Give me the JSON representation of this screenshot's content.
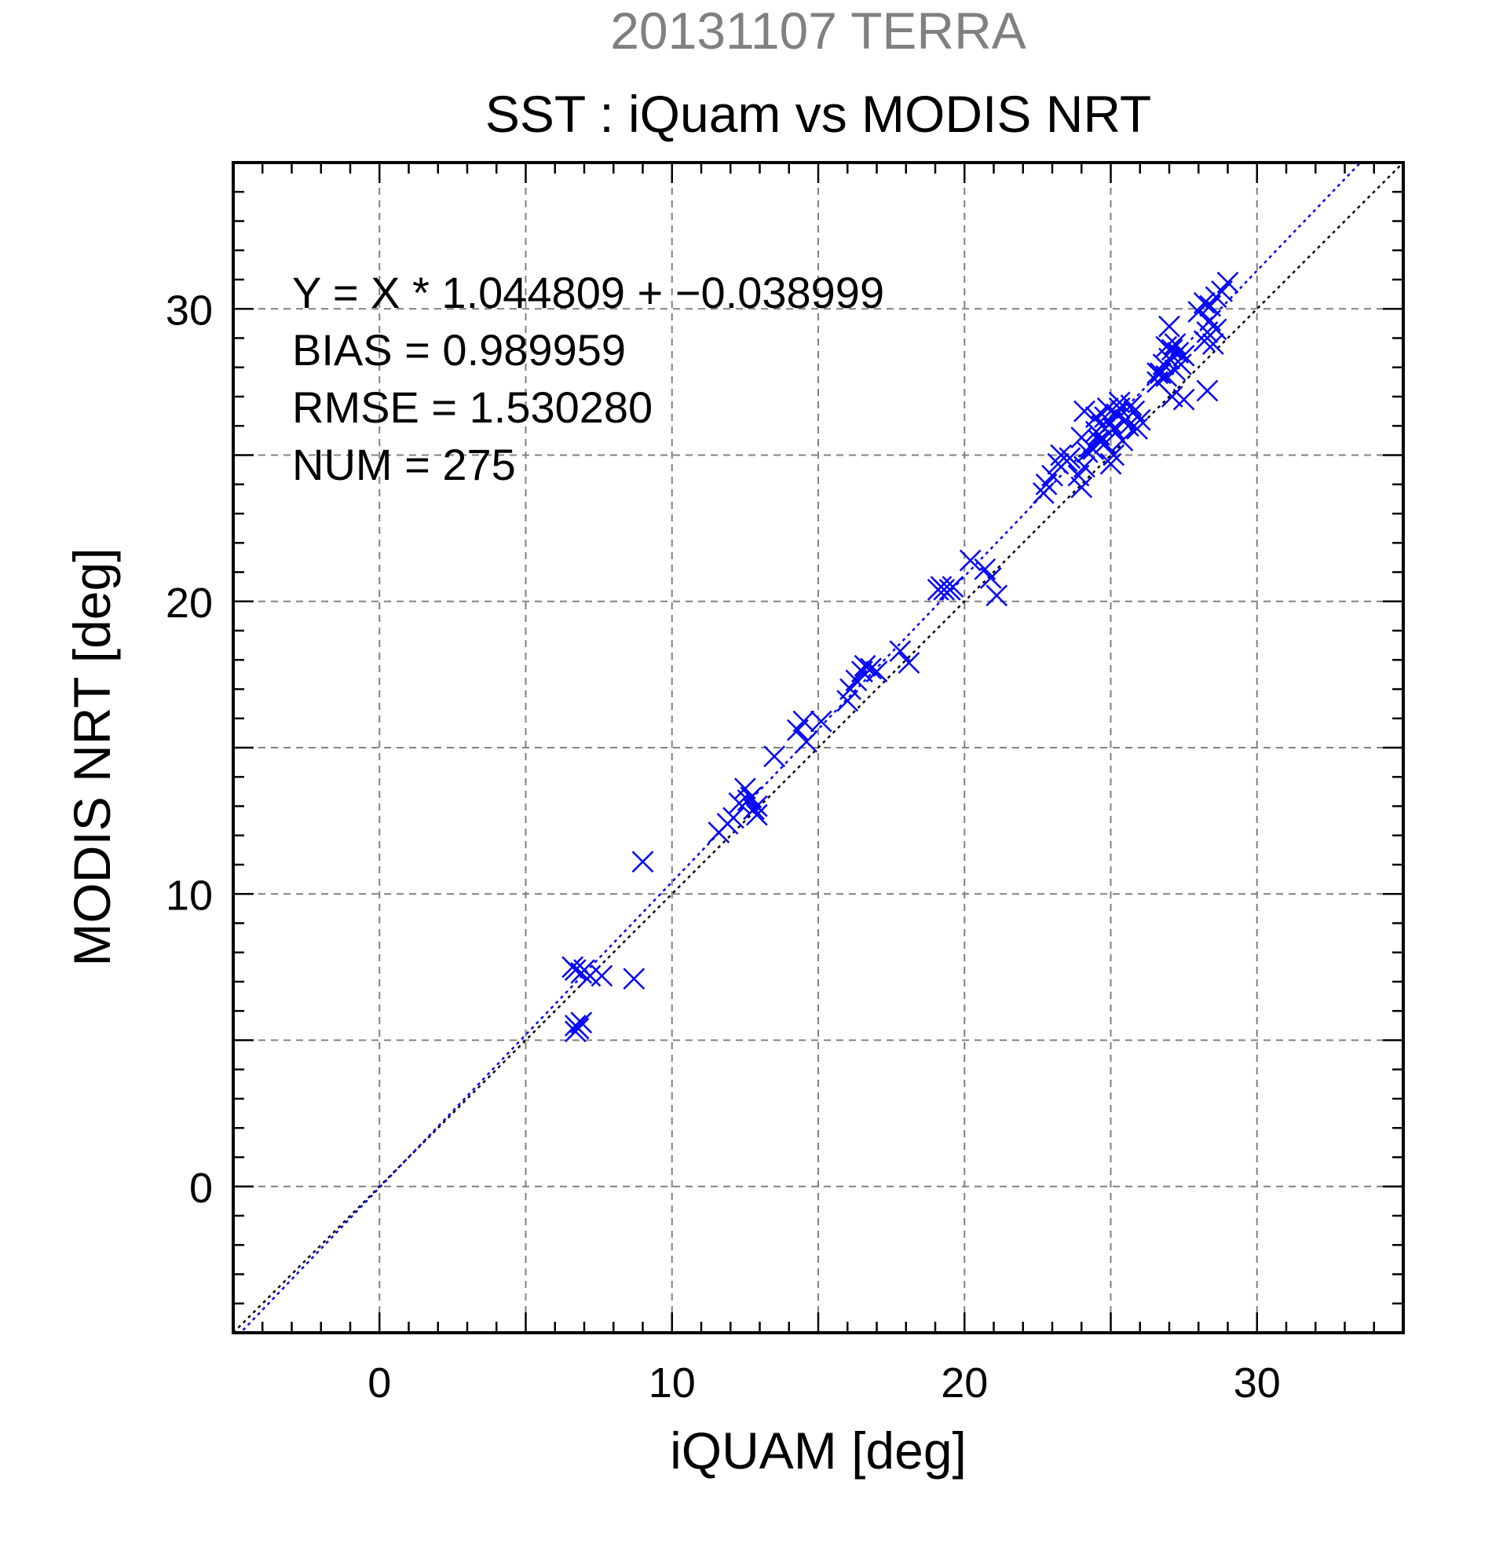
{
  "chart_data": {
    "type": "scatter",
    "suptitle": "20131107 TERRA",
    "title": "SST : iQuam vs MODIS NRT",
    "xlabel": "iQUAM [deg]",
    "ylabel": "MODIS NRT [deg]",
    "xlim": [
      -5,
      35
    ],
    "ylim": [
      -5,
      35
    ],
    "xticks": [
      0,
      10,
      20,
      30
    ],
    "yticks": [
      0,
      10,
      20,
      30
    ],
    "grid": true,
    "annotations": [
      "Y = X * 1.044809 + −0.038999",
      "BIAS = 0.989959",
      "RMSE = 1.530280",
      "NUM = 275"
    ],
    "reference_line": {
      "slope": 1,
      "intercept": 0,
      "color": "#000000",
      "style": "dotted"
    },
    "fit_line": {
      "slope": 1.044809,
      "intercept": -0.038999,
      "color": "#0000ff",
      "style": "dotted"
    },
    "marker_color": "#0000ff",
    "marker": "x",
    "points": [
      [
        6.6,
        7.5
      ],
      [
        6.7,
        7.4
      ],
      [
        6.9,
        7.3
      ],
      [
        7.0,
        7.4
      ],
      [
        7.2,
        7.2
      ],
      [
        7.6,
        7.2
      ],
      [
        6.7,
        5.5
      ],
      [
        6.8,
        5.4
      ],
      [
        6.7,
        5.3
      ],
      [
        6.9,
        5.6
      ],
      [
        8.7,
        7.1
      ],
      [
        9.0,
        11.1
      ],
      [
        11.6,
        12.1
      ],
      [
        11.9,
        12.4
      ],
      [
        12.1,
        12.6
      ],
      [
        12.3,
        13.1
      ],
      [
        12.5,
        13.6
      ],
      [
        12.6,
        13.2
      ],
      [
        12.8,
        12.9
      ],
      [
        12.9,
        13.0
      ],
      [
        12.9,
        12.7
      ],
      [
        12.7,
        13.3
      ],
      [
        13.5,
        14.7
      ],
      [
        14.3,
        15.6
      ],
      [
        14.5,
        15.9
      ],
      [
        14.6,
        15.2
      ],
      [
        15.1,
        15.9
      ],
      [
        16.0,
        16.6
      ],
      [
        16.1,
        17.0
      ],
      [
        16.3,
        17.3
      ],
      [
        16.5,
        17.6
      ],
      [
        16.6,
        17.8
      ],
      [
        16.8,
        17.7
      ],
      [
        17.0,
        17.6
      ],
      [
        17.8,
        18.3
      ],
      [
        18.1,
        17.9
      ],
      [
        19.1,
        20.4
      ],
      [
        19.2,
        20.5
      ],
      [
        19.3,
        20.4
      ],
      [
        19.5,
        20.4
      ],
      [
        19.6,
        20.5
      ],
      [
        20.2,
        21.4
      ],
      [
        20.7,
        21.1
      ],
      [
        20.9,
        20.8
      ],
      [
        21.1,
        20.2
      ],
      [
        22.7,
        23.7
      ],
      [
        22.8,
        24.0
      ],
      [
        23.0,
        24.3
      ],
      [
        23.2,
        24.7
      ],
      [
        23.3,
        25.0
      ],
      [
        23.5,
        24.8
      ],
      [
        23.6,
        24.9
      ],
      [
        23.9,
        24.3
      ],
      [
        24.0,
        23.9
      ],
      [
        24.1,
        24.6
      ],
      [
        24.2,
        25.1
      ],
      [
        24.0,
        25.6
      ],
      [
        24.3,
        25.3
      ],
      [
        24.5,
        25.8
      ],
      [
        24.6,
        25.5
      ],
      [
        24.7,
        26.0
      ],
      [
        24.8,
        26.3
      ],
      [
        24.9,
        26.6
      ],
      [
        24.5,
        26.3
      ],
      [
        24.1,
        26.5
      ],
      [
        25.0,
        26.1
      ],
      [
        25.1,
        25.9
      ],
      [
        25.2,
        26.4
      ],
      [
        25.3,
        26.6
      ],
      [
        25.4,
        25.5
      ],
      [
        25.5,
        26.2
      ],
      [
        25.6,
        26.0
      ],
      [
        25.8,
        26.5
      ],
      [
        25.9,
        25.9
      ],
      [
        26.0,
        26.2
      ],
      [
        25.0,
        24.7
      ],
      [
        25.1,
        25.0
      ],
      [
        24.6,
        25.7
      ],
      [
        24.8,
        25.4
      ],
      [
        24.4,
        25.2
      ],
      [
        25.7,
        26.7
      ],
      [
        25.3,
        26.8
      ],
      [
        26.6,
        27.5
      ],
      [
        26.7,
        27.8
      ],
      [
        26.8,
        28.1
      ],
      [
        26.9,
        27.7
      ],
      [
        27.0,
        28.3
      ],
      [
        27.1,
        28.6
      ],
      [
        27.2,
        27.9
      ],
      [
        27.3,
        28.5
      ],
      [
        27.4,
        28.1
      ],
      [
        27.5,
        28.4
      ],
      [
        26.9,
        28.7
      ],
      [
        27.0,
        29.4
      ],
      [
        27.1,
        27.0
      ],
      [
        27.5,
        26.9
      ],
      [
        26.6,
        27.8
      ],
      [
        27.2,
        28.8
      ],
      [
        28.2,
        28.9
      ],
      [
        28.3,
        29.2
      ],
      [
        28.4,
        29.6
      ],
      [
        28.5,
        28.8
      ],
      [
        28.6,
        29.3
      ],
      [
        28.3,
        27.2
      ],
      [
        28.0,
        29.9
      ],
      [
        28.2,
        30.2
      ],
      [
        28.4,
        30.1
      ],
      [
        28.6,
        30.4
      ],
      [
        28.8,
        30.6
      ],
      [
        29.0,
        30.9
      ]
    ]
  }
}
